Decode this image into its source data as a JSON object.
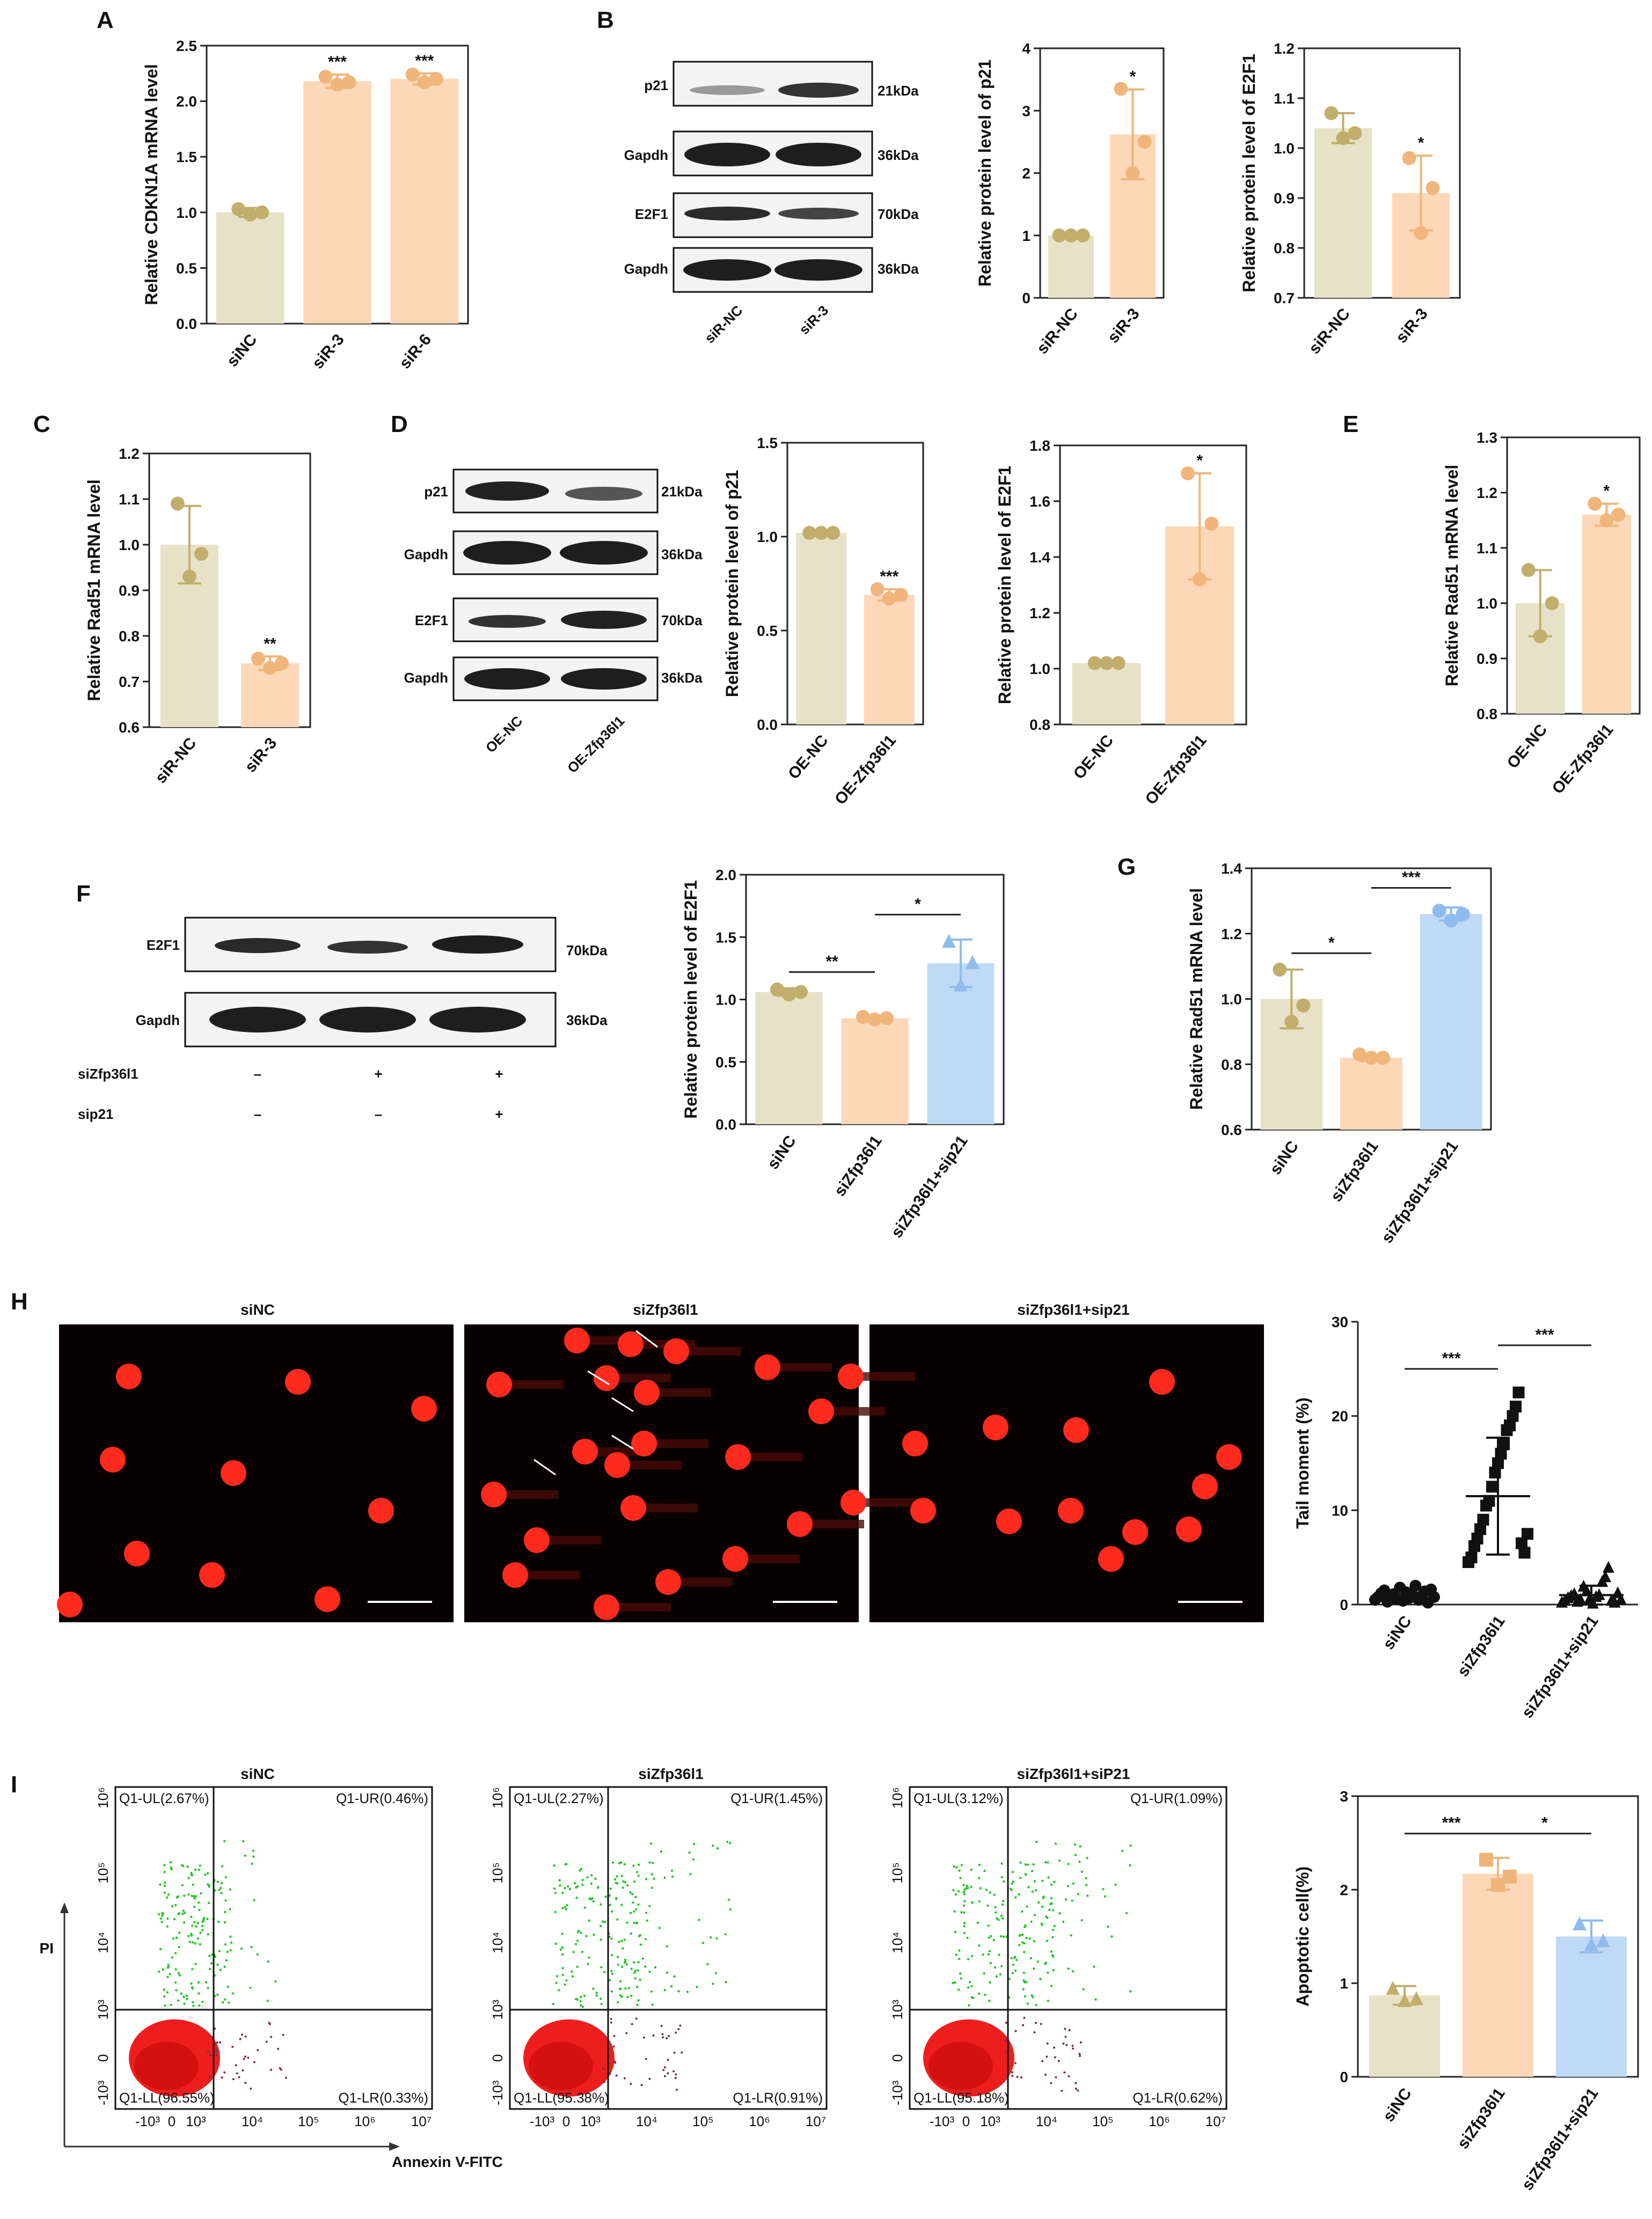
{
  "colors": {
    "siNC": "#e7e2c7",
    "si": "#fcd8b8",
    "rescue": "#c0d9f4",
    "siNC_pt": "#c1ae6c",
    "si_pt": "#f0b57a",
    "rescue_pt": "#8fbcec",
    "blot_bg": "#f3f3f3",
    "band": "#1e1e1e",
    "micro_bg": "#080000",
    "nucleus": "#ff2a1e"
  },
  "panels": {
    "A": "A",
    "B": "B",
    "C": "C",
    "D": "D",
    "E": "E",
    "F": "F",
    "G": "G",
    "H": "H",
    "I": "I"
  },
  "blots": {
    "B": {
      "rows": [
        "p21",
        "Gapdh",
        "E2F1",
        "Gapdh"
      ],
      "sizes": [
        "21kDa",
        "36kDa",
        "70kDa",
        "36kDa"
      ],
      "lanes": [
        "siR-NC",
        "siR-3"
      ]
    },
    "D": {
      "rows": [
        "p21",
        "Gapdh",
        "E2F1",
        "Gapdh"
      ],
      "sizes": [
        "21kDa",
        "36kDa",
        "70kDa",
        "36kDa"
      ],
      "lanes": [
        "OE-NC",
        "OE-Zfp36l1"
      ]
    },
    "F": {
      "rows": [
        "E2F1",
        "Gapdh"
      ],
      "sizes": [
        "70kDa",
        "36kDa"
      ],
      "conditions": [
        {
          "name": "siZfp36l1",
          "signs": [
            "–",
            "+",
            "+"
          ]
        },
        {
          "name": "sip21",
          "signs": [
            "–",
            "–",
            "+"
          ]
        }
      ]
    }
  },
  "micrographs": {
    "titles": [
      "siNC",
      "siZfp36l1",
      "siZfp36l1+sip21"
    ]
  },
  "flow": {
    "titles": [
      "siNC",
      "siZfp36l1",
      "siZfp36l1+siP21"
    ],
    "y_axis": "PI",
    "x_axis": "Annexin V-FITC",
    "quadrants": [
      {
        "ul": "Q1-UL(2.67%)",
        "ur": "Q1-UR(0.46%)",
        "ll": "Q1-LL(96.55%)",
        "lr": "Q1-LR(0.33%)"
      },
      {
        "ul": "Q1-UL(2.27%)",
        "ur": "Q1-UR(1.45%)",
        "ll": "Q1-LL(95.38%)",
        "lr": "Q1-LR(0.91%)"
      },
      {
        "ul": "Q1-UL(3.12%)",
        "ur": "Q1-UR(1.09%)",
        "ll": "Q1-LL(95.18%)",
        "lr": "Q1-LR(0.62%)"
      }
    ],
    "x_ticks": [
      "-10³",
      "0",
      "10³",
      "10⁴",
      "10⁵",
      "10⁶",
      "10⁷"
    ],
    "y_ticks": [
      "-10³",
      "0",
      "10³",
      "10⁴",
      "10⁵",
      "10⁶"
    ]
  },
  "chart_data": [
    {
      "id": "A",
      "type": "bar",
      "ylabel": "Relative CDKN1A mRNA level",
      "ylim": [
        0,
        2.5
      ],
      "ticks": [
        "0.0",
        "0.5",
        "1.0",
        "1.5",
        "2.0",
        "2.5"
      ],
      "categories": [
        "siNC",
        "siR-3",
        "siR-6"
      ],
      "values": [
        1.0,
        2.18,
        2.2
      ],
      "errors": [
        0.04,
        0.06,
        0.05
      ],
      "points": [
        [
          1.03,
          0.98,
          1.0
        ],
        [
          2.22,
          2.15,
          2.17
        ],
        [
          2.24,
          2.17,
          2.2
        ]
      ],
      "groups": [
        0,
        1,
        1
      ],
      "marker": [
        "circle",
        "circle",
        "circle"
      ],
      "sig_above": [
        "",
        "***",
        "***"
      ],
      "brackets": []
    },
    {
      "id": "B1",
      "type": "bar",
      "ylabel": "Relative protein level of p21",
      "ylim": [
        0,
        4
      ],
      "ticks": [
        "0",
        "1",
        "2",
        "3",
        "4"
      ],
      "categories": [
        "siR-NC",
        "siR-3"
      ],
      "values": [
        1.0,
        2.62
      ],
      "errors": [
        0.0,
        0.72
      ],
      "points": [
        [
          1.0,
          1.0,
          1.0
        ],
        [
          3.35,
          2.0,
          2.5
        ]
      ],
      "groups": [
        0,
        1
      ],
      "marker": [
        "circle",
        "circle"
      ],
      "sig_above": [
        "",
        "*"
      ],
      "brackets": []
    },
    {
      "id": "B2",
      "type": "bar",
      "ylabel": "Relative protein level of E2F1",
      "ylim": [
        0.7,
        1.2
      ],
      "ticks": [
        "0.7",
        "0.8",
        "0.9",
        "1.0",
        "1.1",
        "1.2"
      ],
      "categories": [
        "siR-NC",
        "siR-3"
      ],
      "values": [
        1.04,
        0.91
      ],
      "errors": [
        0.03,
        0.075
      ],
      "points": [
        [
          1.07,
          1.02,
          1.03
        ],
        [
          0.98,
          0.83,
          0.92
        ]
      ],
      "groups": [
        0,
        1
      ],
      "marker": [
        "circle",
        "circle"
      ],
      "sig_above": [
        "",
        "*"
      ],
      "brackets": []
    },
    {
      "id": "C",
      "type": "bar",
      "ylabel": "Relative Rad51 mRNA level",
      "ylim": [
        0.6,
        1.2
      ],
      "ticks": [
        "0.6",
        "0.7",
        "0.8",
        "0.9",
        "1.0",
        "1.1",
        "1.2"
      ],
      "categories": [
        "siR-NC",
        "siR-3"
      ],
      "values": [
        1.0,
        0.74
      ],
      "errors": [
        0.085,
        0.015
      ],
      "points": [
        [
          1.09,
          0.93,
          0.98
        ],
        [
          0.75,
          0.73,
          0.74
        ]
      ],
      "groups": [
        0,
        1
      ],
      "marker": [
        "circle",
        "circle"
      ],
      "sig_above": [
        "",
        "**"
      ],
      "brackets": []
    },
    {
      "id": "D1",
      "type": "bar",
      "ylabel": "Relative protein level of p21",
      "ylim": [
        0,
        1.5
      ],
      "ticks": [
        "0.0",
        "0.5",
        "1.0",
        "1.5"
      ],
      "categories": [
        "OE-NC",
        "OE-Zfp36l1"
      ],
      "values": [
        1.02,
        0.69
      ],
      "errors": [
        0.0,
        0.03
      ],
      "points": [
        [
          1.02,
          1.02,
          1.02
        ],
        [
          0.72,
          0.67,
          0.69
        ]
      ],
      "groups": [
        0,
        1
      ],
      "marker": [
        "circle",
        "circle"
      ],
      "sig_above": [
        "",
        "***"
      ],
      "brackets": []
    },
    {
      "id": "D2",
      "type": "bar",
      "ylabel": "Relative protein level of E2F1",
      "ylim": [
        0.8,
        1.8
      ],
      "ticks": [
        "0.8",
        "1.0",
        "1.2",
        "1.4",
        "1.6",
        "1.8"
      ],
      "categories": [
        "OE-NC",
        "OE-Zfp36l1"
      ],
      "values": [
        1.02,
        1.51
      ],
      "errors": [
        0.0,
        0.19
      ],
      "points": [
        [
          1.02,
          1.02,
          1.02
        ],
        [
          1.7,
          1.32,
          1.52
        ]
      ],
      "groups": [
        0,
        1
      ],
      "marker": [
        "circle",
        "circle"
      ],
      "sig_above": [
        "",
        "*"
      ],
      "brackets": []
    },
    {
      "id": "E",
      "type": "bar",
      "ylabel": "Relative Rad51 mRNA level",
      "ylim": [
        0.8,
        1.3
      ],
      "ticks": [
        "0.8",
        "0.9",
        "1.0",
        "1.1",
        "1.2",
        "1.3"
      ],
      "categories": [
        "OE-NC",
        "OE-Zfp36l1"
      ],
      "values": [
        1.0,
        1.16
      ],
      "errors": [
        0.06,
        0.02
      ],
      "points": [
        [
          1.06,
          0.94,
          1.0
        ],
        [
          1.18,
          1.15,
          1.16
        ]
      ],
      "groups": [
        0,
        1
      ],
      "marker": [
        "circle",
        "circle"
      ],
      "sig_above": [
        "",
        "*"
      ],
      "brackets": []
    },
    {
      "id": "F",
      "type": "bar",
      "ylabel": "Relative protein level of E2F1",
      "ylim": [
        0,
        2.0
      ],
      "ticks": [
        "0.0",
        "0.5",
        "1.0",
        "1.5",
        "2.0"
      ],
      "categories": [
        "siNC",
        "siZfp36l1",
        "siZfp36l1+sip21"
      ],
      "values": [
        1.06,
        0.85,
        1.29
      ],
      "errors": [
        0.03,
        0.02,
        0.19
      ],
      "points": [
        [
          1.08,
          1.04,
          1.06
        ],
        [
          0.86,
          0.84,
          0.85
        ],
        [
          1.47,
          1.12,
          1.3
        ]
      ],
      "groups": [
        0,
        1,
        2
      ],
      "marker": [
        "circle",
        "circle",
        "triangle"
      ],
      "sig_above": [
        "",
        "",
        ""
      ],
      "brackets": [
        {
          "from": 0,
          "to": 1,
          "y": 1.22,
          "label": "**"
        },
        {
          "from": 1,
          "to": 2,
          "y": 1.68,
          "label": "*"
        }
      ]
    },
    {
      "id": "G",
      "type": "bar",
      "ylabel": "Relative Rad51 mRNA level",
      "ylim": [
        0.6,
        1.4
      ],
      "ticks": [
        "0.6",
        "0.8",
        "1.0",
        "1.2",
        "1.4"
      ],
      "categories": [
        "siNC",
        "siZfp36l1",
        "siZfp36l1+sip21"
      ],
      "values": [
        1.0,
        0.82,
        1.26
      ],
      "errors": [
        0.09,
        0.01,
        0.02
      ],
      "points": [
        [
          1.09,
          0.93,
          0.98
        ],
        [
          0.83,
          0.82,
          0.82
        ],
        [
          1.27,
          1.24,
          1.26
        ]
      ],
      "groups": [
        0,
        1,
        2
      ],
      "marker": [
        "circle",
        "circle",
        "circle"
      ],
      "sig_above": [
        "",
        "",
        ""
      ],
      "brackets": [
        {
          "from": 0,
          "to": 1,
          "y": 1.14,
          "label": "*"
        },
        {
          "from": 1,
          "to": 2,
          "y": 1.34,
          "label": "***"
        }
      ]
    },
    {
      "id": "H",
      "type": "scatter",
      "ylabel": "Tail moment (%)",
      "ylim": [
        0,
        30
      ],
      "ticks": [
        "0",
        "10",
        "20",
        "30"
      ],
      "categories": [
        "siNC",
        "siZfp36l1",
        "siZfp36l1+sip21"
      ],
      "values": [
        1.0,
        11.5,
        1.0
      ],
      "errors": [
        0.6,
        6.2,
        1.0
      ],
      "points": [
        [
          0.5,
          0.8,
          1.2,
          1.5,
          0.3,
          0.9,
          1.1,
          0.6,
          1.8,
          0.4,
          1.3,
          0.7,
          1.0,
          2.0,
          0.5,
          0.9,
          1.4,
          0.2,
          1.6,
          0.8
        ],
        [
          4.5,
          5.0,
          6.2,
          7.0,
          8.0,
          9.0,
          10.5,
          11.0,
          12.5,
          14.0,
          15.0,
          16.0,
          17.0,
          18.5,
          19.0,
          20.0,
          21.0,
          22.5,
          6.5,
          5.5,
          7.5
        ],
        [
          0.3,
          0.5,
          0.8,
          1.0,
          1.2,
          0.4,
          0.6,
          2.0,
          1.5,
          0.7,
          0.2,
          0.9,
          1.1,
          2.5,
          3.0,
          4.0,
          0.5,
          0.3,
          1.3,
          0.6
        ]
      ],
      "groups": [
        0,
        1,
        2
      ],
      "marker": [
        "circle",
        "square",
        "triangle"
      ],
      "sig_above": [
        "",
        "",
        ""
      ],
      "brackets": [
        {
          "from": 0,
          "to": 1,
          "y": 25,
          "label": "***"
        },
        {
          "from": 1,
          "to": 2,
          "y": 27.5,
          "label": "***"
        }
      ]
    },
    {
      "id": "I",
      "type": "bar",
      "ylabel": "Apoptotic cell(%)",
      "ylim": [
        0,
        3
      ],
      "ticks": [
        "0",
        "1",
        "2",
        "3"
      ],
      "categories": [
        "siNC",
        "siZfp36l1",
        "siZfp36l1+sip21"
      ],
      "values": [
        0.87,
        2.17,
        1.5
      ],
      "errors": [
        0.1,
        0.17,
        0.17
      ],
      "points": [
        [
          0.95,
          0.82,
          0.84
        ],
        [
          2.32,
          2.05,
          2.14
        ],
        [
          1.64,
          1.42,
          1.46
        ]
      ],
      "groups": [
        0,
        1,
        2
      ],
      "marker": [
        "triangle",
        "square",
        "triangle"
      ],
      "sig_above": [
        "",
        "",
        ""
      ],
      "brackets": [
        {
          "from": 0,
          "to": 1,
          "y": 2.6,
          "label": "***"
        },
        {
          "from": 1,
          "to": 2,
          "y": 2.6,
          "label": "*"
        }
      ]
    }
  ]
}
